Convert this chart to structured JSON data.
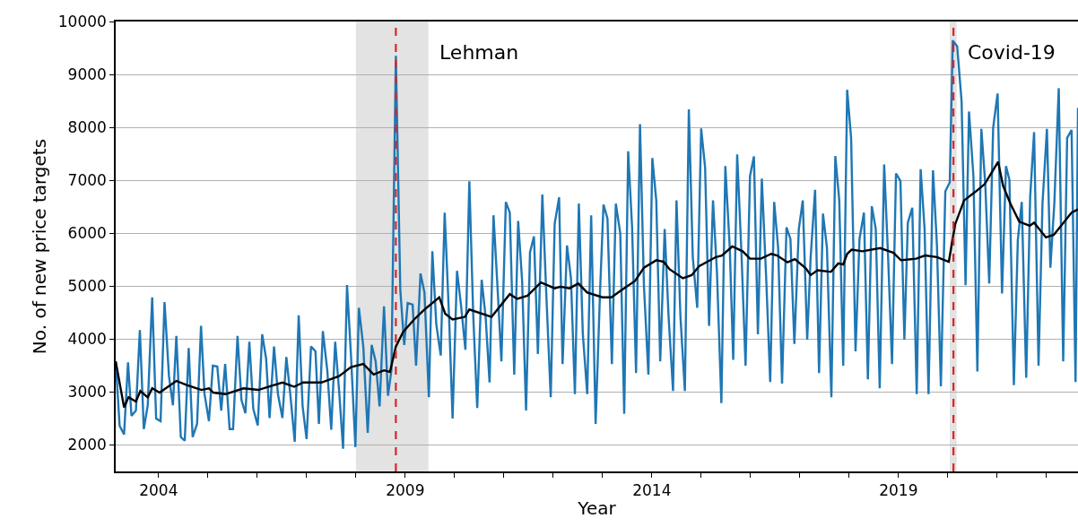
{
  "chart_data": {
    "type": "line",
    "xlabel": "Year",
    "ylabel": "No. of new price targets",
    "xlim": [
      2003.13,
      2022.64
    ],
    "ylim": [
      1500,
      10000
    ],
    "xticks": [
      2004,
      {
        "value": 2005,
        "label": null
      },
      {
        "value": 2006,
        "label": null
      },
      {
        "value": 2007,
        "label": null
      },
      {
        "value": 2008,
        "label": null
      },
      2009,
      {
        "value": 2010,
        "label": null
      },
      {
        "value": 2011,
        "label": null
      },
      {
        "value": 2012,
        "label": null
      },
      {
        "value": 2013,
        "label": null
      },
      2014,
      {
        "value": 2015,
        "label": null
      },
      {
        "value": 2016,
        "label": null
      },
      {
        "value": 2017,
        "label": null
      },
      {
        "value": 2018,
        "label": null
      },
      2019,
      {
        "value": 2020,
        "label": null
      },
      {
        "value": 2021,
        "label": null
      },
      {
        "value": 2022,
        "label": null
      }
    ],
    "yticks": [
      2000,
      3000,
      4000,
      5000,
      6000,
      7000,
      8000,
      9000,
      10000
    ],
    "grid": "y",
    "marker": "none",
    "line_style": "solid",
    "series": [
      {
        "color": "#1f77b4",
        "x": [
          2003.13,
          2003.21,
          2003.3,
          2003.38,
          2003.45,
          2003.54,
          2003.62,
          2003.7,
          2003.78,
          2003.87,
          2003.95,
          2004.04,
          2004.12,
          2004.21,
          2004.29,
          2004.36,
          2004.45,
          2004.53,
          2004.61,
          2004.69,
          2004.78,
          2004.86,
          2004.93,
          2005.02,
          2005.1,
          2005.19,
          2005.27,
          2005.35,
          2005.44,
          2005.51,
          2005.6,
          2005.68,
          2005.76,
          2005.84,
          2005.92,
          2006.01,
          2006.1,
          2006.18,
          2006.25,
          2006.34,
          2006.42,
          2006.51,
          2006.59,
          2006.67,
          2006.76,
          2006.84,
          2006.92,
          2007.0,
          2007.09,
          2007.18,
          2007.25,
          2007.33,
          2007.42,
          2007.5,
          2007.58,
          2007.66,
          2007.74,
          2007.82,
          2007.9,
          2007.99,
          2008.06,
          2008.15,
          2008.24,
          2008.32,
          2008.4,
          2008.48,
          2008.57,
          2008.65,
          2008.72,
          2008.81,
          2008.9,
          2008.98,
          2009.05,
          2009.15,
          2009.22,
          2009.31,
          2009.39,
          2009.48,
          2009.55,
          2009.63,
          2009.72,
          2009.8,
          2009.89,
          2009.96,
          2010.05,
          2010.13,
          2010.22,
          2010.3,
          2010.38,
          2010.46,
          2010.55,
          2010.63,
          2010.71,
          2010.79,
          2010.87,
          2010.95,
          2011.04,
          2011.12,
          2011.21,
          2011.29,
          2011.37,
          2011.45,
          2011.53,
          2011.61,
          2011.69,
          2011.78,
          2011.86,
          2011.95,
          2012.03,
          2012.12,
          2012.19,
          2012.28,
          2012.36,
          2012.44,
          2012.52,
          2012.6,
          2012.69,
          2012.77,
          2012.86,
          2012.95,
          2013.02,
          2013.1,
          2013.19,
          2013.27,
          2013.36,
          2013.44,
          2013.52,
          2013.6,
          2013.68,
          2013.76,
          2013.84,
          2013.93,
          2014.01,
          2014.09,
          2014.17,
          2014.26,
          2014.34,
          2014.43,
          2014.5,
          2014.58,
          2014.67,
          2014.75,
          2014.83,
          2014.92,
          2015.0,
          2015.08,
          2015.16,
          2015.24,
          2015.32,
          2015.41,
          2015.49,
          2015.58,
          2015.65,
          2015.73,
          2015.82,
          2015.9,
          2015.99,
          2016.07,
          2016.15,
          2016.23,
          2016.32,
          2016.4,
          2016.48,
          2016.56,
          2016.64,
          2016.73,
          2016.81,
          2016.89,
          2016.98,
          2017.06,
          2017.15,
          2017.22,
          2017.31,
          2017.39,
          2017.47,
          2017.55,
          2017.64,
          2017.72,
          2017.8,
          2017.88,
          2017.96,
          2018.04,
          2018.13,
          2018.21,
          2018.3,
          2018.38,
          2018.46,
          2018.54,
          2018.62,
          2018.71,
          2018.79,
          2018.87,
          2018.95,
          2019.04,
          2019.12,
          2019.19,
          2019.28,
          2019.37,
          2019.45,
          2019.53,
          2019.61,
          2019.7,
          2019.78,
          2019.86,
          2019.95,
          2020.04,
          2020.1,
          2020.19,
          2020.28,
          2020.36,
          2020.43,
          2020.52,
          2020.6,
          2020.68,
          2020.76,
          2020.84,
          2020.92,
          2021.01,
          2021.1,
          2021.18,
          2021.25,
          2021.34,
          2021.42,
          2021.5,
          2021.59,
          2021.67,
          2021.75,
          2021.84,
          2021.92,
          2022.01,
          2022.08,
          2022.16,
          2022.25,
          2022.34,
          2022.42,
          2022.51,
          2022.59,
          2022.64
        ],
        "values": [
          3580,
          2360,
          2200,
          3560,
          2550,
          2650,
          4170,
          2300,
          2750,
          4790,
          2500,
          2450,
          4700,
          3300,
          2750,
          4060,
          2150,
          2080,
          3830,
          2150,
          2400,
          4250,
          2970,
          2450,
          3500,
          3480,
          2650,
          3530,
          2300,
          2300,
          4060,
          2850,
          2600,
          3950,
          2680,
          2370,
          4090,
          3630,
          2510,
          3860,
          2960,
          2510,
          3660,
          2960,
          2060,
          4450,
          2730,
          2110,
          3860,
          3770,
          2400,
          4150,
          3410,
          2290,
          3950,
          3020,
          1930,
          5020,
          3700,
          1960,
          4590,
          3860,
          2230,
          3890,
          3580,
          2730,
          4620,
          2930,
          3410,
          9350,
          4930,
          3890,
          4680,
          4650,
          3500,
          5240,
          4880,
          2900,
          5660,
          4280,
          3690,
          6390,
          4390,
          2500,
          5290,
          4650,
          3800,
          6980,
          4420,
          2700,
          5120,
          4420,
          3180,
          6340,
          5000,
          3580,
          6590,
          6390,
          3330,
          6230,
          5100,
          2650,
          5640,
          5940,
          3720,
          6730,
          4850,
          2900,
          6180,
          6680,
          3530,
          5770,
          5150,
          2960,
          6560,
          4110,
          2960,
          6340,
          2400,
          4900,
          6540,
          6280,
          3530,
          6560,
          6000,
          2590,
          7550,
          6110,
          3360,
          8060,
          5000,
          3330,
          7420,
          6620,
          3580,
          6080,
          4420,
          3020,
          6620,
          4420,
          3020,
          8340,
          5550,
          4590,
          7980,
          7240,
          4250,
          6620,
          5270,
          2790,
          7270,
          5720,
          3610,
          7490,
          5550,
          3500,
          7080,
          7450,
          4090,
          7030,
          5110,
          3190,
          6590,
          5730,
          3160,
          6110,
          5890,
          3910,
          6080,
          6620,
          3990,
          5550,
          6820,
          3360,
          6370,
          5730,
          2900,
          7460,
          6620,
          3500,
          8710,
          7800,
          3770,
          5890,
          6390,
          3240,
          6510,
          6080,
          3070,
          7300,
          5550,
          3530,
          7130,
          6990,
          3990,
          6200,
          6480,
          2960,
          7210,
          6080,
          2960,
          7190,
          5780,
          3110,
          6790,
          6960,
          9640,
          9530,
          8490,
          5020,
          8300,
          7080,
          3390,
          7970,
          6930,
          5050,
          7990,
          8640,
          4860,
          7270,
          7010,
          3130,
          5870,
          6590,
          3270,
          6680,
          7910,
          3500,
          6560,
          7970,
          5350,
          6560,
          8740,
          3580,
          7800,
          7950,
          3190,
          8370
        ]
      },
      {
        "color": "#000000",
        "x": [
          2003.13,
          2003.3,
          2003.39,
          2003.54,
          2003.63,
          2003.78,
          2003.87,
          2004.02,
          2004.36,
          2004.57,
          2004.87,
          2005.02,
          2005.11,
          2005.36,
          2005.72,
          2006.02,
          2006.51,
          2006.75,
          2006.93,
          2007.3,
          2007.66,
          2007.9,
          2008.15,
          2008.36,
          2008.57,
          2008.69,
          2008.81,
          2008.96,
          2009.18,
          2009.39,
          2009.69,
          2009.81,
          2009.96,
          2010.21,
          2010.3,
          2010.75,
          2011.12,
          2011.27,
          2011.48,
          2011.75,
          2012.03,
          2012.15,
          2012.33,
          2012.51,
          2012.69,
          2013.0,
          2013.18,
          2013.39,
          2013.66,
          2013.84,
          2014.09,
          2014.24,
          2014.36,
          2014.63,
          2014.81,
          2014.96,
          2015.3,
          2015.42,
          2015.63,
          2015.84,
          2015.99,
          2016.21,
          2016.42,
          2016.54,
          2016.75,
          2016.9,
          2017.12,
          2017.22,
          2017.36,
          2017.63,
          2017.78,
          2017.88,
          2017.96,
          2018.05,
          2018.27,
          2018.63,
          2018.9,
          2019.05,
          2019.36,
          2019.54,
          2019.78,
          2020.02,
          2020.15,
          2020.33,
          2020.57,
          2020.75,
          2021.02,
          2021.12,
          2021.27,
          2021.45,
          2021.66,
          2021.75,
          2021.99,
          2022.15,
          2022.27,
          2022.51,
          2022.64
        ],
        "values": [
          3580,
          2710,
          2900,
          2820,
          3020,
          2900,
          3070,
          2990,
          3210,
          3130,
          3040,
          3070,
          2990,
          2960,
          3070,
          3040,
          3180,
          3100,
          3180,
          3180,
          3300,
          3470,
          3530,
          3330,
          3410,
          3380,
          3860,
          4140,
          4370,
          4560,
          4790,
          4480,
          4370,
          4420,
          4560,
          4420,
          4850,
          4760,
          4820,
          5070,
          4960,
          4990,
          4960,
          5050,
          4880,
          4790,
          4790,
          4930,
          5100,
          5350,
          5490,
          5460,
          5320,
          5150,
          5210,
          5380,
          5550,
          5580,
          5750,
          5660,
          5520,
          5520,
          5610,
          5580,
          5450,
          5510,
          5340,
          5210,
          5300,
          5270,
          5430,
          5410,
          5610,
          5690,
          5660,
          5720,
          5630,
          5490,
          5520,
          5580,
          5550,
          5460,
          6170,
          6620,
          6790,
          6930,
          7350,
          6900,
          6560,
          6220,
          6140,
          6200,
          5920,
          5970,
          6110,
          6390,
          6450
        ]
      }
    ],
    "bands": [
      {
        "axis": "x",
        "from": 2008.0,
        "to": 2009.47,
        "color": "#e3e3e3",
        "label": "Lehman"
      },
      {
        "axis": "x",
        "from": 2020.04,
        "to": 2020.18,
        "color": "#e3e3e3",
        "label": "Covid-19"
      }
    ],
    "ref_lines": [
      {
        "axis": "x",
        "value": 2008.81,
        "color": "#d62728",
        "line_style": "dashed"
      },
      {
        "axis": "x",
        "value": 2020.115,
        "color": "#d62728",
        "line_style": "dashed"
      }
    ]
  }
}
